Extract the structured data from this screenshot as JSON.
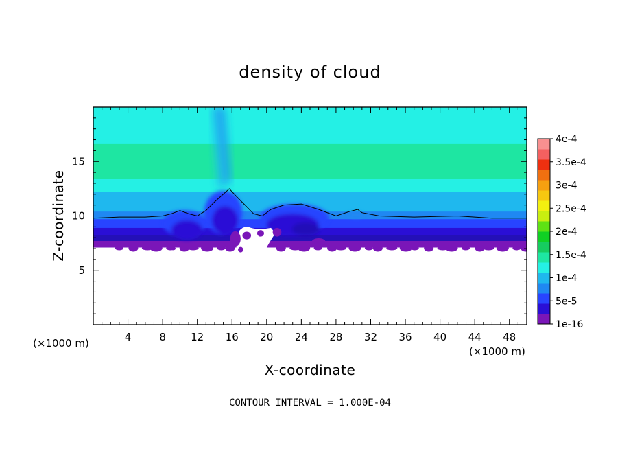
{
  "chart_data": {
    "type": "heatmap",
    "title": "density of cloud",
    "xlabel": "X-coordinate",
    "ylabel": "Z-coordinate",
    "x_unit": "(×1000 m)",
    "y_unit": "(×1000 m)",
    "xlim": [
      0,
      50
    ],
    "ylim": [
      0,
      20
    ],
    "x_ticks": [
      4,
      8,
      12,
      16,
      20,
      24,
      28,
      32,
      36,
      40,
      44,
      48
    ],
    "y_ticks": [
      5,
      10,
      15
    ],
    "footer": "CONTOUR INTERVAL = 1.000E-04",
    "colorbar": {
      "labels": [
        "1e-16",
        "5e-5",
        "1e-4",
        "1.5e-4",
        "2e-4",
        "2.5e-4",
        "3e-4",
        "3.5e-4",
        "4e-4"
      ],
      "colors": [
        "#7a16b8",
        "#2a0fd6",
        "#2844ff",
        "#1f88f2",
        "#1fb8ee",
        "#25f0e4",
        "#1ee6a2",
        "#16cc60",
        "#10d024",
        "#5ee214",
        "#c8ee10",
        "#f2f010",
        "#f6c810",
        "#f6a010",
        "#f07010",
        "#ee3010",
        "#f46060",
        "#f89090"
      ]
    },
    "cloud_band": {
      "base_z": 7.1,
      "top_z": 20
    },
    "contour_1e-4": [
      [
        0,
        9.8
      ],
      [
        3,
        9.9
      ],
      [
        6,
        9.9
      ],
      [
        8,
        10.0
      ],
      [
        9,
        10.2
      ],
      [
        10,
        10.5
      ],
      [
        11,
        10.2
      ],
      [
        12,
        10.0
      ],
      [
        13,
        10.5
      ],
      [
        14,
        11.3
      ],
      [
        15,
        12.0
      ],
      [
        15.7,
        12.5
      ],
      [
        16.5,
        11.8
      ],
      [
        17.5,
        11.0
      ],
      [
        18.5,
        10.2
      ],
      [
        19.5,
        10.0
      ],
      [
        20.5,
        10.6
      ],
      [
        22,
        11.0
      ],
      [
        24,
        11.1
      ],
      [
        26,
        10.6
      ],
      [
        28,
        10.0
      ],
      [
        29.5,
        10.4
      ],
      [
        30.5,
        10.6
      ],
      [
        31,
        10.3
      ],
      [
        33,
        10.0
      ],
      [
        37,
        9.9
      ],
      [
        42,
        10.0
      ],
      [
        46,
        9.8
      ],
      [
        50,
        9.8
      ]
    ]
  }
}
